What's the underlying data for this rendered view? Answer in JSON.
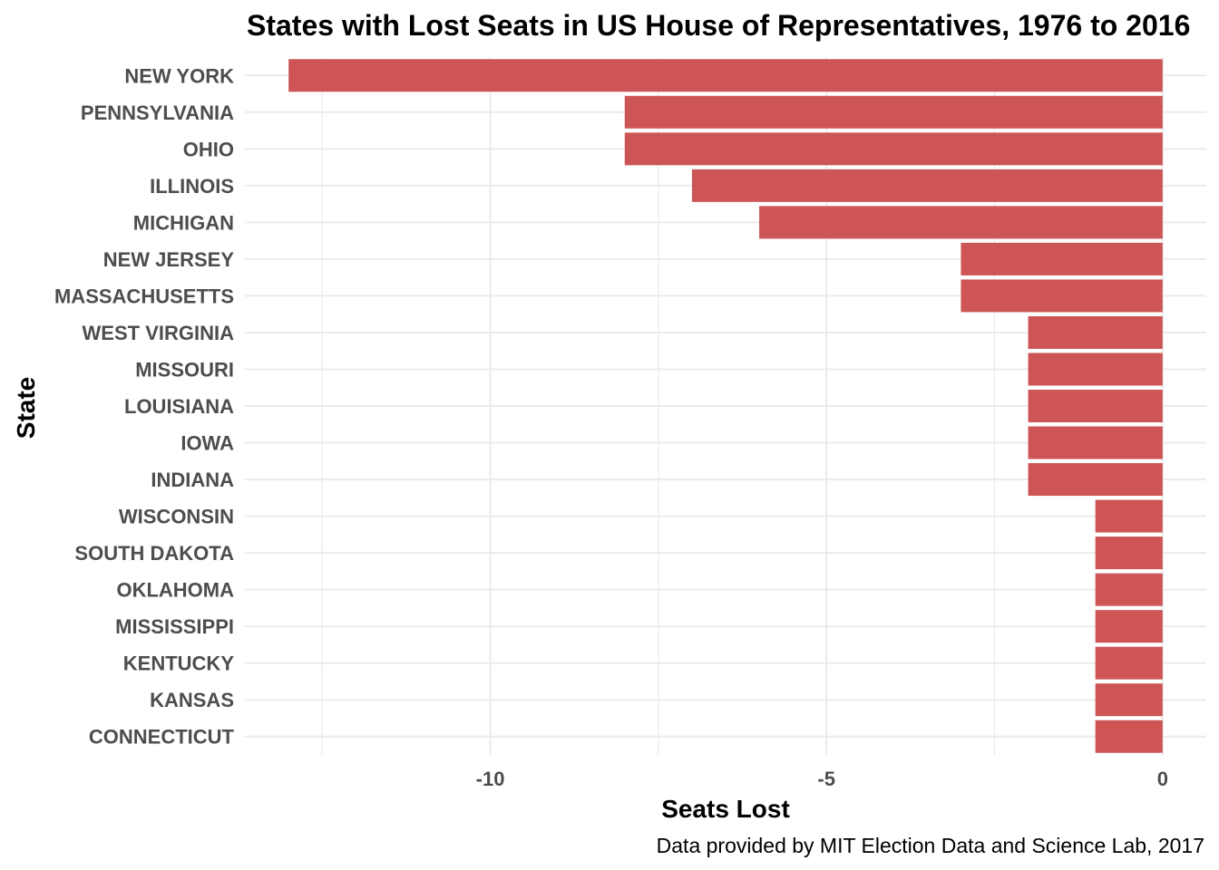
{
  "chart_data": {
    "type": "bar",
    "orientation": "horizontal",
    "title": "States with Lost Seats in US House of Representatives, 1976 to 2016",
    "xlabel": "Seats Lost",
    "ylabel": "State",
    "caption": "Data provided by MIT Election Data and Science Lab, 2017",
    "categories": [
      "NEW YORK",
      "PENNSYLVANIA",
      "OHIO",
      "ILLINOIS",
      "MICHIGAN",
      "NEW JERSEY",
      "MASSACHUSETTS",
      "WEST VIRGINIA",
      "MISSOURI",
      "LOUISIANA",
      "IOWA",
      "INDIANA",
      "WISCONSIN",
      "SOUTH DAKOTA",
      "OKLAHOMA",
      "MISSISSIPPI",
      "KENTUCKY",
      "KANSAS",
      "CONNECTICUT"
    ],
    "values": [
      -13,
      -8,
      -8,
      -7,
      -6,
      -3,
      -3,
      -2,
      -2,
      -2,
      -2,
      -2,
      -1,
      -1,
      -1,
      -1,
      -1,
      -1,
      -1
    ],
    "xlim": [
      -13.65,
      0.65
    ],
    "xticks": [
      -10,
      -5,
      0
    ],
    "xtick_labels": [
      "-10",
      "-5",
      "0"
    ],
    "grid": true,
    "legend": "none",
    "bar_color": "#cd5555"
  }
}
